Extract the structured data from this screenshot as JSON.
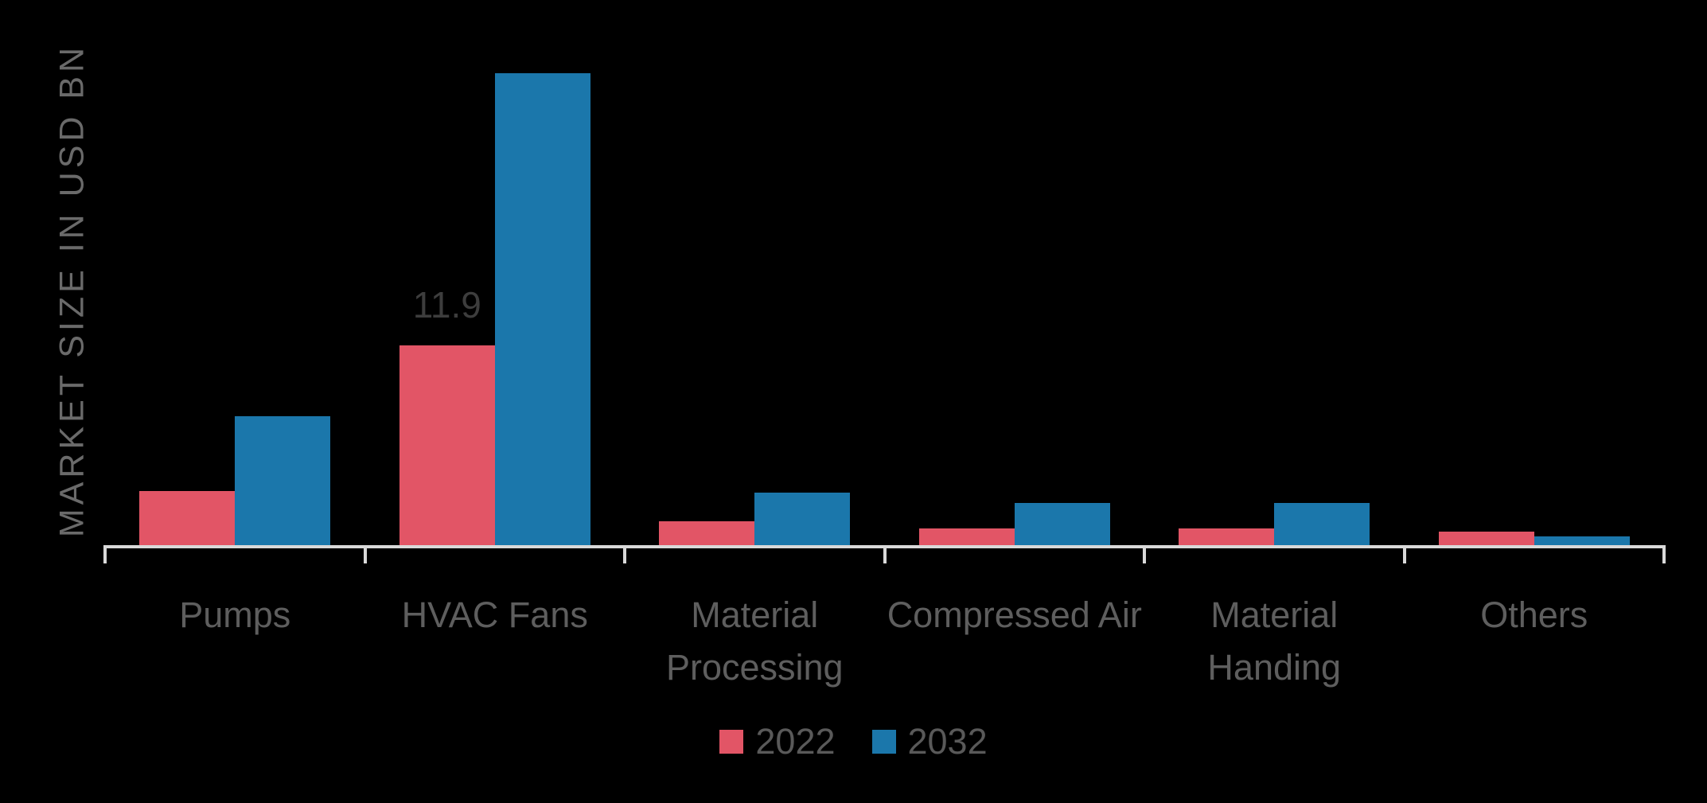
{
  "chart_data": {
    "type": "bar",
    "title": "",
    "xlabel": "",
    "ylabel": "MARKET SIZE IN USD BN",
    "ylim": [
      0,
      28
    ],
    "grid": false,
    "legend_position": "bottom",
    "categories": [
      "Pumps",
      "HVAC Fans",
      "Material Processing",
      "Compressed Air",
      "Material Handing",
      "Others"
    ],
    "series": [
      {
        "name": "2022",
        "color": "#E25566",
        "values": [
          3.3,
          11.9,
          1.5,
          1.1,
          1.1,
          0.9
        ]
      },
      {
        "name": "2032",
        "color": "#1B77AB",
        "values": [
          7.7,
          28.0,
          3.2,
          2.6,
          2.6,
          0.6
        ]
      }
    ],
    "data_labels": [
      {
        "series": "2022",
        "category": "HVAC Fans",
        "text": "11.9"
      }
    ],
    "colors": {
      "background": "#000000",
      "axis_line": "#D9D9D9",
      "category_label": "#5E5E5E",
      "axis_title": "#6A6A6A",
      "data_label": "#3D3D3D"
    }
  }
}
